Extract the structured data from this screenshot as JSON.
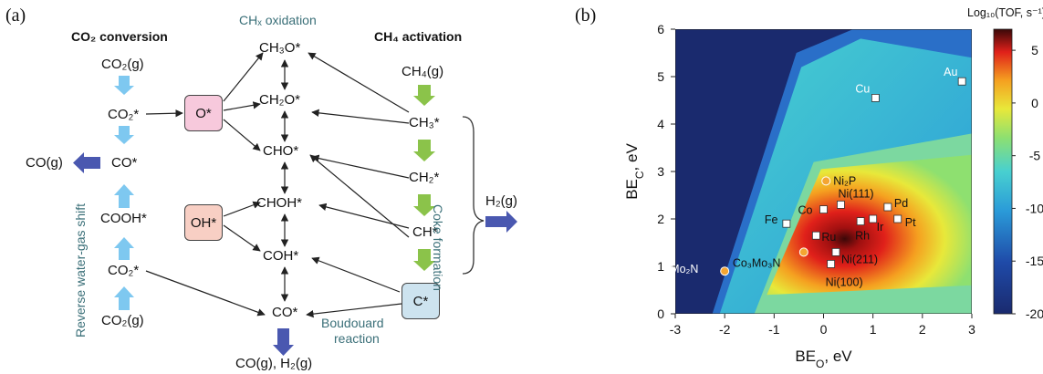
{
  "panel_a": {
    "label": "(a)",
    "header_left": "CO₂ conversion",
    "header_mid": "CHₓ oxidation",
    "header_right": "CH₄ activation",
    "co2_col": [
      "CO₂(g)",
      "CO₂*",
      "CO*",
      "COOH*",
      "CO₂*",
      "CO₂(g)"
    ],
    "co_gas": "CO(g)",
    "rwgs": "Reverse water-gas shift",
    "box_o": "O*",
    "box_oh": "OH*",
    "mid_col": [
      "CH₃O*",
      "CH₂O*",
      "CHO*",
      "CHOH*",
      "COH*",
      "CO*"
    ],
    "bottom_product": "CO(g), H₂(g)",
    "ch4_col": [
      "CH₄(g)",
      "CH₃*",
      "CH₂*",
      "CH*"
    ],
    "box_c": "C*",
    "coke": "Coke formation",
    "h2": "H₂(g)",
    "boudouard_1": "Boudouard",
    "boudouard_2": "reaction"
  },
  "panel_b": {
    "label": "(b)",
    "colorbar_title": "Log₁₀(TOF, s⁻¹)",
    "colorbar_ticks": [
      "5",
      "0",
      "-5",
      "-10",
      "-15",
      "-20"
    ],
    "colors": {
      "dark_blue": "#1a2a6e",
      "yellow": "#e8e83a",
      "red": "#e0201a",
      "orange_marker": "#f4a532"
    }
  },
  "chart_data": {
    "type": "heatmap",
    "xlabel": "BE_O, eV",
    "ylabel": "BE_C, eV",
    "xlim": [
      -3,
      3
    ],
    "ylim": [
      0,
      6
    ],
    "xticks": [
      "-3",
      "-2",
      "-1",
      "0",
      "1",
      "2",
      "3"
    ],
    "yticks": [
      "0",
      "1",
      "2",
      "3",
      "4",
      "5",
      "6"
    ],
    "colorbar_label": "Log₁₀(TOF, s⁻¹)",
    "colorbar_range": [
      -20,
      7
    ],
    "points": [
      {
        "label": "Au",
        "x": 2.8,
        "y": 4.9,
        "marker": "square"
      },
      {
        "label": "Cu",
        "x": 1.05,
        "y": 4.55,
        "marker": "square"
      },
      {
        "label": "Ni₂P",
        "x": 0.05,
        "y": 2.8,
        "marker": "circle"
      },
      {
        "label": "Ni(111)",
        "x": 0.35,
        "y": 2.3,
        "marker": "square"
      },
      {
        "label": "Co",
        "x": 0.0,
        "y": 2.2,
        "marker": "square"
      },
      {
        "label": "Pd",
        "x": 1.3,
        "y": 2.25,
        "marker": "square"
      },
      {
        "label": "Fe",
        "x": -0.75,
        "y": 1.9,
        "marker": "square"
      },
      {
        "label": "Rh",
        "x": 0.75,
        "y": 1.95,
        "marker": "square"
      },
      {
        "label": "Ir",
        "x": 1.0,
        "y": 2.0,
        "marker": "square"
      },
      {
        "label": "Pt",
        "x": 1.5,
        "y": 2.0,
        "marker": "square"
      },
      {
        "label": "Ru",
        "x": -0.15,
        "y": 1.65,
        "marker": "square"
      },
      {
        "label": "Ni(211)",
        "x": 0.25,
        "y": 1.3,
        "marker": "square"
      },
      {
        "label": "Co₃Mo₃N",
        "x": -0.4,
        "y": 1.3,
        "marker": "circle"
      },
      {
        "label": "Ni(100)",
        "x": 0.15,
        "y": 1.05,
        "marker": "square"
      },
      {
        "label": "Mo₂N",
        "x": -2.0,
        "y": 0.9,
        "marker": "circle"
      }
    ]
  }
}
